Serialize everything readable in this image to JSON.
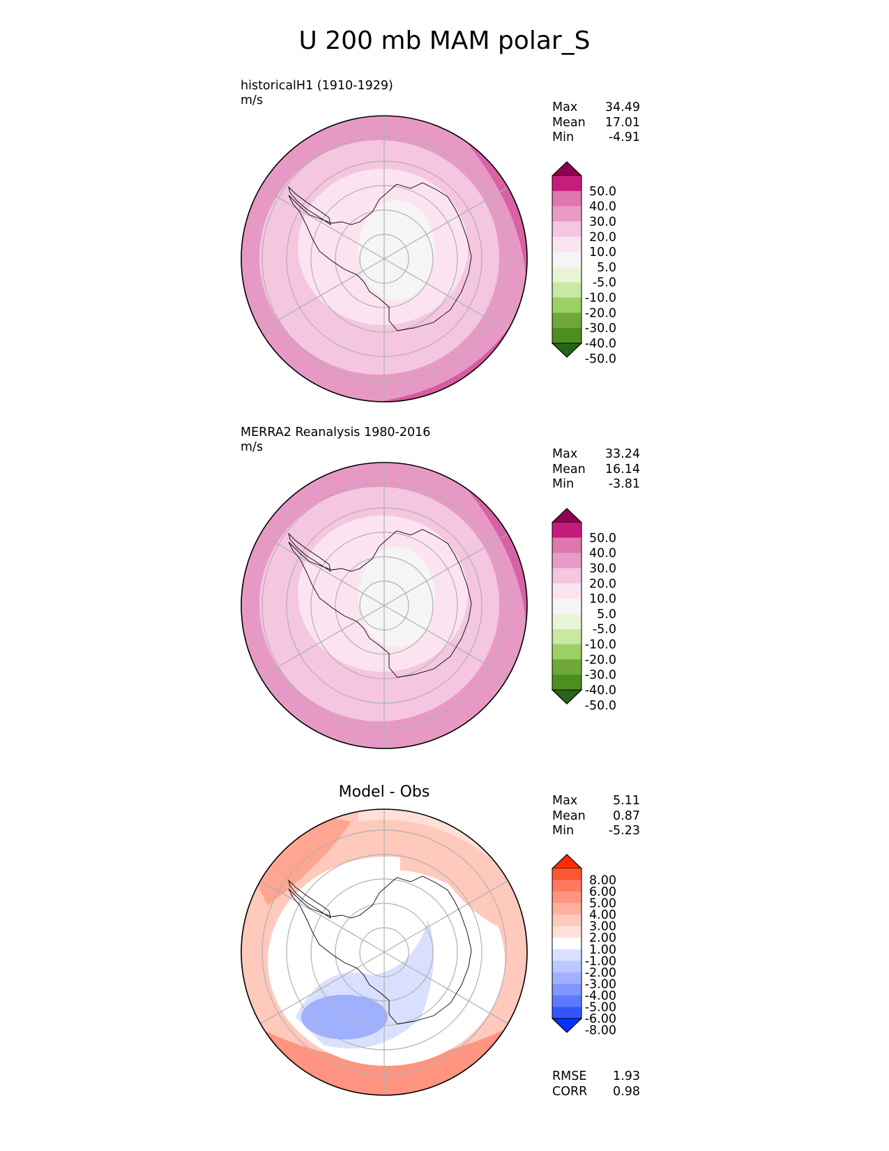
{
  "figure": {
    "title": "U 200 mb MAM polar_S"
  },
  "panels": [
    {
      "id": "model",
      "title": "historicalH1 (1910-1929)",
      "units": "m/s",
      "stats": [
        {
          "label": "Max",
          "value": "34.49"
        },
        {
          "label": "Mean",
          "value": "17.01"
        },
        {
          "label": "Min",
          "value": "-4.91"
        }
      ],
      "colorbar": {
        "labels": [
          "50.0",
          "40.0",
          "30.0",
          "20.0",
          "10.0",
          "5.0",
          "-5.0",
          "-10.0",
          "-20.0",
          "-30.0",
          "-40.0",
          "-50.0"
        ],
        "colors": [
          "#8e0152",
          "#c51b7d",
          "#de77ae",
          "#e99bc7",
          "#f4c6e0",
          "#fbe4ef",
          "#f5f5f5",
          "#e8f5d8",
          "#c9e8a2",
          "#9ccf64",
          "#6fa83a",
          "#4d8e22",
          "#276419"
        ]
      },
      "field": {
        "base": "#e799c5",
        "rings": [
          "#f4c6e0",
          "#fbe4ef",
          "#f5f5f5"
        ],
        "accent": "#d65c9e"
      }
    },
    {
      "id": "obs",
      "title": "MERRA2 Reanalysis 1980-2016",
      "units": "m/s",
      "stats": [
        {
          "label": "Max",
          "value": "33.24"
        },
        {
          "label": "Mean",
          "value": "16.14"
        },
        {
          "label": "Min",
          "value": "-3.81"
        }
      ],
      "colorbar": {
        "labels": [
          "50.0",
          "40.0",
          "30.0",
          "20.0",
          "10.0",
          "5.0",
          "-5.0",
          "-10.0",
          "-20.0",
          "-30.0",
          "-40.0",
          "-50.0"
        ],
        "colors": [
          "#8e0152",
          "#c51b7d",
          "#de77ae",
          "#e99bc7",
          "#f4c6e0",
          "#fbe4ef",
          "#f5f5f5",
          "#e8f5d8",
          "#c9e8a2",
          "#9ccf64",
          "#6fa83a",
          "#4d8e22",
          "#276419"
        ]
      },
      "field": {
        "base": "#e799c5",
        "rings": [
          "#f4c6e0",
          "#fbe4ef",
          "#f5f5f5"
        ],
        "accent": "#d65c9e"
      }
    },
    {
      "id": "diff",
      "title": "Model - Obs",
      "stats": [
        {
          "label": "Max",
          "value": "5.11"
        },
        {
          "label": "Mean",
          "value": "0.87"
        },
        {
          "label": "Min",
          "value": "-5.23"
        }
      ],
      "metrics": [
        {
          "label": "RMSE",
          "value": "1.93"
        },
        {
          "label": "CORR",
          "value": "0.98"
        }
      ],
      "colorbar": {
        "labels": [
          "8.00",
          "6.00",
          "5.00",
          "4.00",
          "3.00",
          "2.00",
          "1.00",
          "-1.00",
          "-2.00",
          "-3.00",
          "-4.00",
          "-5.00",
          "-6.00",
          "-8.00"
        ],
        "colors": [
          "#ff2b00",
          "#ff5533",
          "#ff7a5c",
          "#ff9580",
          "#ffb09f",
          "#ffc9bc",
          "#ffe0d9",
          "#ffffff",
          "#d9e0ff",
          "#bcc9ff",
          "#9fb0ff",
          "#8095ff",
          "#5c7aff",
          "#3355ff",
          "#0033ff"
        ]
      },
      "field": {
        "base": "#ffffff",
        "warm": "#ffc9bc",
        "warm2": "#ffe0d9",
        "warm3": "#ff9580",
        "cool": "#d9e0ff",
        "cool2": "#bcc9ff",
        "cool3": "#9fb0ff"
      }
    }
  ],
  "map_style": {
    "grid_color": "#b0b0b0",
    "coast_color": "#000000"
  }
}
